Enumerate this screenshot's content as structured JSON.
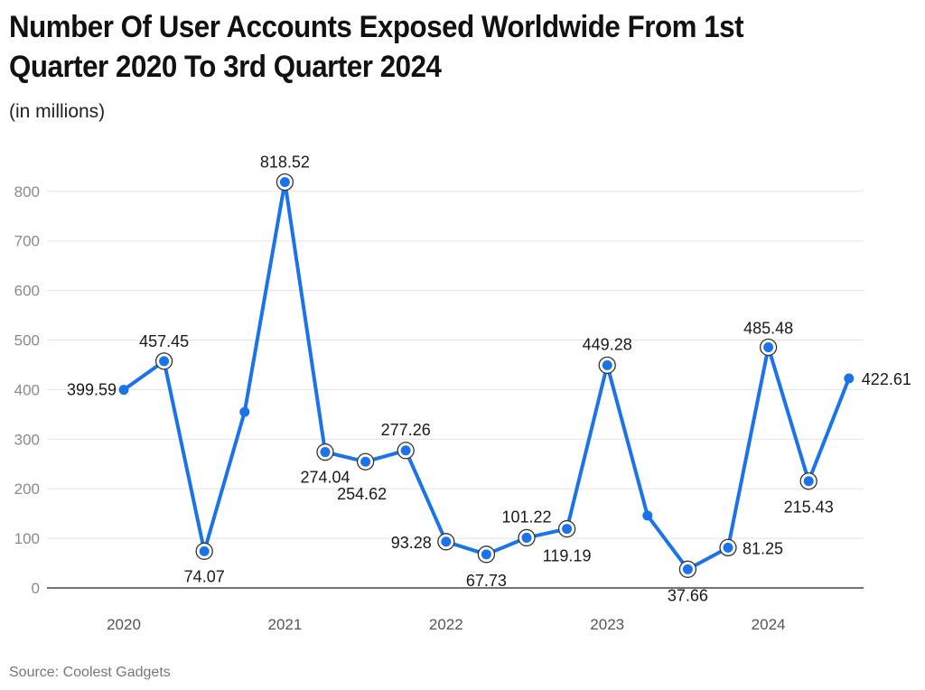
{
  "chart_data": {
    "type": "line",
    "title": "Number Of User Accounts Exposed Worldwide From 1st Quarter 2020 To 3rd Quarter 2024",
    "subtitle": "(in millions)",
    "source": "Source: Coolest Gadgets",
    "xlabel": "",
    "ylabel": "",
    "ylim": [
      0,
      850
    ],
    "yticks": [
      0,
      100,
      200,
      300,
      400,
      500,
      600,
      700,
      800
    ],
    "year_ticks": [
      "2020",
      "2021",
      "2022",
      "2023",
      "2024"
    ],
    "grid": true,
    "legend": "none",
    "line_color": "#1a73e8",
    "series": [
      {
        "x": [
          "Q1 2020",
          "Q2 2020",
          "Q3 2020",
          "Q4 2020",
          "Q1 2021",
          "Q2 2021",
          "Q3 2021",
          "Q4 2021",
          "Q1 2022",
          "Q2 2022",
          "Q3 2022",
          "Q4 2022",
          "Q1 2023",
          "Q2 2023",
          "Q3 2023",
          "Q4 2023",
          "Q1 2024",
          "Q2 2024",
          "Q3 2024"
        ],
        "values": [
          399.59,
          457.45,
          74.07,
          355,
          818.52,
          274.04,
          254.62,
          277.26,
          93.28,
          67.73,
          101.22,
          119.19,
          449.28,
          146,
          37.66,
          81.25,
          485.48,
          215.43,
          422.61
        ],
        "labels": [
          "399.59",
          "457.45",
          "74.07",
          "",
          "818.52",
          "274.04",
          "254.62",
          "277.26",
          "93.28",
          "67.73",
          "101.22",
          "119.19",
          "449.28",
          "",
          "37.66",
          "81.25",
          "485.48",
          "215.43",
          "422.61"
        ],
        "highlighted": [
          false,
          true,
          true,
          false,
          true,
          true,
          true,
          true,
          true,
          true,
          true,
          true,
          true,
          false,
          true,
          true,
          true,
          true,
          false
        ]
      }
    ]
  }
}
